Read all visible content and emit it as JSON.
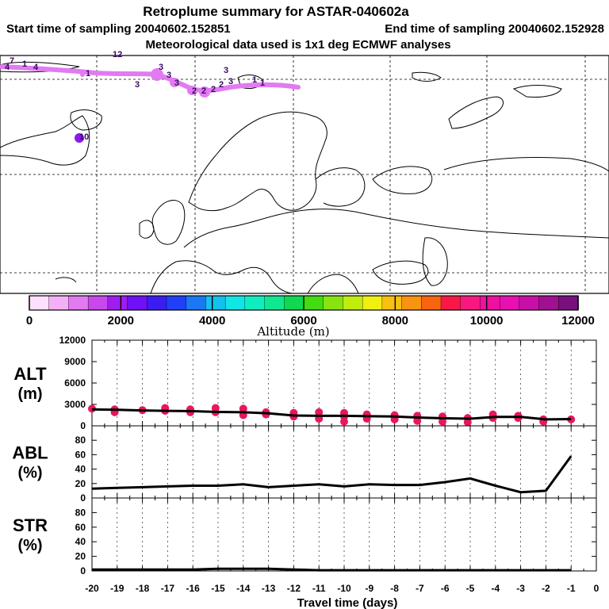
{
  "header": {
    "title": "Retroplume summary for ASTAR-040602a",
    "start_time": "Start time of sampling 20040602.152851",
    "end_time": "End time of sampling 20040602.152928",
    "met_data": "Meteorological data used is 1x1 deg ECMWF analyses"
  },
  "colors": {
    "plume": "#e27af2",
    "alt_markers": "#e8175d",
    "land": "#ffffff",
    "outline": "#000000"
  },
  "map": {
    "plume_labels": [
      "4",
      "7",
      "1",
      "4",
      "1",
      "12",
      "3",
      "3",
      "3",
      "3",
      "2",
      "2",
      "2",
      "2",
      "3",
      "3",
      "1",
      "1",
      "10"
    ]
  },
  "colorbar": {
    "label": "Altitude (m)",
    "tick_labels": [
      "0",
      "2000",
      "4000",
      "6000",
      "8000",
      "10000",
      "12000"
    ],
    "colors": [
      "#fde0fd",
      "#f4b0f7",
      "#e27af2",
      "#c948ec",
      "#a01df0",
      "#7010f4",
      "#3c1cf2",
      "#2040f8",
      "#1a78f4",
      "#14c0ee",
      "#10e6e6",
      "#10eec0",
      "#10e890",
      "#10d850",
      "#42dc10",
      "#88e410",
      "#c0ec10",
      "#f0f010",
      "#f8c010",
      "#f89410",
      "#f86410",
      "#f81848",
      "#f81880",
      "#f010a0",
      "#e810b0",
      "#c810a8",
      "#a01090",
      "#78107e"
    ]
  },
  "chart_data": [
    {
      "type": "line",
      "panel": "ALT",
      "ylabel": "ALT\n(m)",
      "ylabel_line1": "ALT",
      "ylabel_line2": "(m)",
      "ylim": [
        0,
        12000
      ],
      "yticks": [
        0,
        3000,
        6000,
        9000,
        12000
      ],
      "ytick_labels": [
        "0",
        "3000",
        "6000",
        "9000",
        "12000"
      ],
      "x": [
        -20,
        -19,
        -18,
        -17,
        -16,
        -15,
        -14,
        -13,
        -12,
        -11,
        -10,
        -9,
        -8,
        -7,
        -6,
        -5,
        -4,
        -3,
        -2,
        -1
      ],
      "values": [
        2300,
        2250,
        2150,
        2100,
        2050,
        1950,
        1900,
        1750,
        1450,
        1400,
        1400,
        1350,
        1300,
        1150,
        1050,
        1000,
        1250,
        1250,
        900,
        950
      ],
      "scatter": [
        {
          "x": -20.0,
          "y": 2400
        },
        {
          "x": -19.1,
          "y": 2300
        },
        {
          "x": -19.1,
          "y": 1900
        },
        {
          "x": -18.0,
          "y": 2200
        },
        {
          "x": -17.1,
          "y": 2500
        },
        {
          "x": -17.1,
          "y": 2100
        },
        {
          "x": -16.1,
          "y": 2300
        },
        {
          "x": -16.1,
          "y": 1900
        },
        {
          "x": -15.1,
          "y": 2500
        },
        {
          "x": -15.1,
          "y": 1900
        },
        {
          "x": -14.0,
          "y": 2400
        },
        {
          "x": -14.0,
          "y": 1500
        },
        {
          "x": -13.1,
          "y": 1900
        },
        {
          "x": -13.1,
          "y": 1600
        },
        {
          "x": -12.0,
          "y": 1800
        },
        {
          "x": -12.0,
          "y": 1300
        },
        {
          "x": -11.0,
          "y": 1900
        },
        {
          "x": -11.0,
          "y": 1000
        },
        {
          "x": -10.0,
          "y": 1800
        },
        {
          "x": -10.0,
          "y": 1300
        },
        {
          "x": -10.0,
          "y": 600
        },
        {
          "x": -9.1,
          "y": 1600
        },
        {
          "x": -9.1,
          "y": 1000
        },
        {
          "x": -8.0,
          "y": 1500
        },
        {
          "x": -8.0,
          "y": 900
        },
        {
          "x": -7.1,
          "y": 1400
        },
        {
          "x": -7.1,
          "y": 700
        },
        {
          "x": -6.1,
          "y": 1300
        },
        {
          "x": -6.1,
          "y": 600
        },
        {
          "x": -5.1,
          "y": 1100
        },
        {
          "x": -5.1,
          "y": 500
        },
        {
          "x": -4.1,
          "y": 1600
        },
        {
          "x": -4.1,
          "y": 1100
        },
        {
          "x": -3.1,
          "y": 1400
        },
        {
          "x": -3.1,
          "y": 1100
        },
        {
          "x": -2.1,
          "y": 900
        },
        {
          "x": -2.1,
          "y": 600
        },
        {
          "x": -1.0,
          "y": 900
        }
      ]
    },
    {
      "type": "line",
      "panel": "ABL",
      "ylabel_line1": "ABL",
      "ylabel_line2": "(%)",
      "ylim": [
        0,
        100
      ],
      "yticks": [
        0,
        20,
        40,
        60,
        80
      ],
      "ytick_labels": [
        "0",
        "20",
        "40",
        "60",
        "80"
      ],
      "x": [
        -20,
        -19,
        -18,
        -17,
        -16,
        -15,
        -14,
        -13,
        -12,
        -11,
        -10,
        -9,
        -8,
        -7,
        -6,
        -5,
        -4,
        -3,
        -2,
        -1
      ],
      "values": [
        13,
        14,
        15,
        16,
        17,
        17,
        19,
        15,
        17,
        19,
        16,
        19,
        18,
        18,
        22,
        27,
        17,
        8,
        10,
        58
      ]
    },
    {
      "type": "line",
      "panel": "STR",
      "ylabel_line1": "STR",
      "ylabel_line2": "(%)",
      "ylim": [
        0,
        100
      ],
      "yticks": [
        0,
        20,
        40,
        60,
        80
      ],
      "ytick_labels": [
        "0",
        "20",
        "40",
        "60",
        "80"
      ],
      "x": [
        -20,
        -19,
        -18,
        -17,
        -16,
        -15,
        -14,
        -13,
        -12,
        -11,
        -10,
        -9,
        -8,
        -7,
        -6,
        -5,
        -4,
        -3,
        -2,
        -1
      ],
      "values": [
        2,
        2,
        2,
        2,
        2,
        3,
        3,
        3,
        2,
        1,
        1,
        1,
        1,
        1,
        1,
        1,
        1,
        1,
        1,
        1
      ]
    }
  ],
  "xaxis": {
    "label": "Travel time (days)",
    "tick_labels": [
      "-20",
      "-19",
      "-18",
      "-17",
      "-16",
      "-15",
      "-14",
      "-13",
      "-12",
      "-11",
      "-10",
      "-9",
      "-8",
      "-7",
      "-6",
      "-5",
      "-4",
      "-3",
      "-2",
      "-1",
      "0"
    ]
  }
}
